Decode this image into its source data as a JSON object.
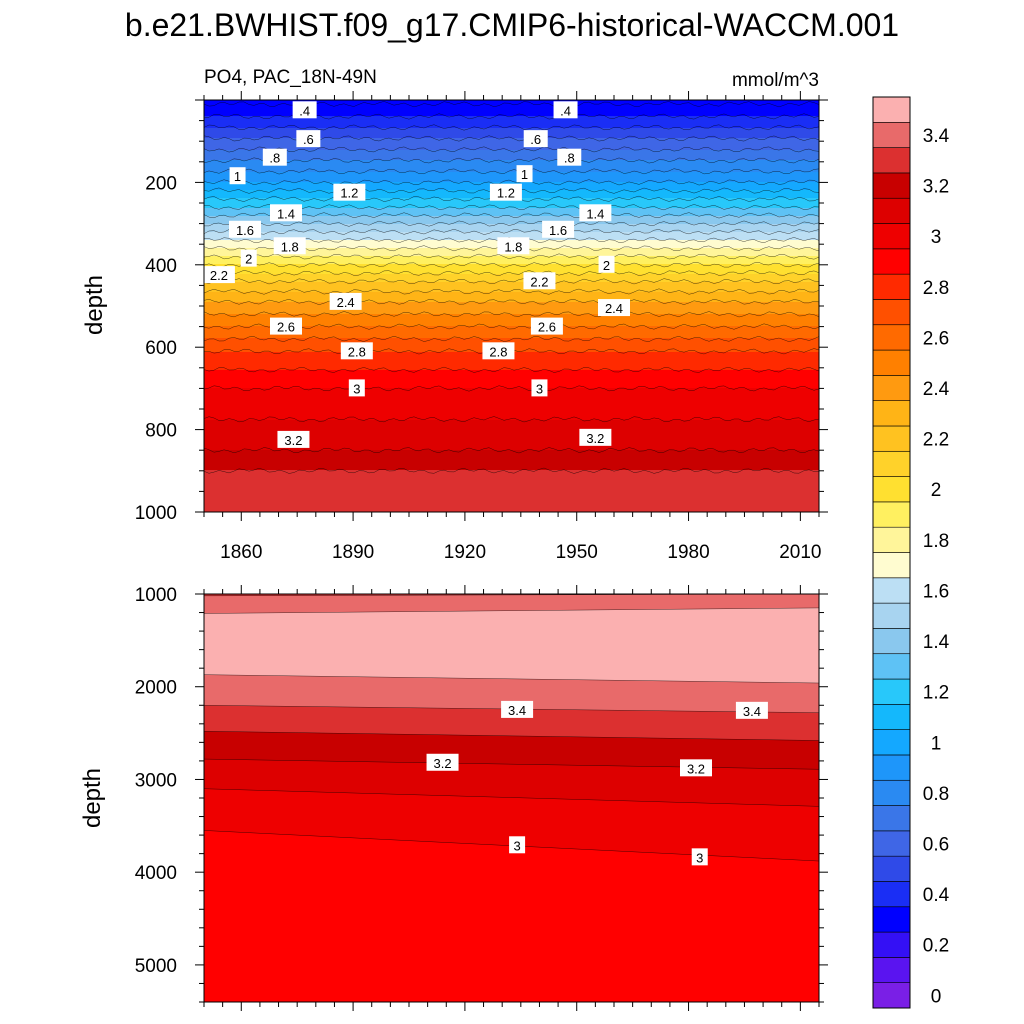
{
  "chart_data": {
    "type": "heatmap",
    "title": "b.e21.BWHIST.f09_g17.CMIP6-historical-WACCM.001",
    "variable_label": "PO4, PAC_18N-49N",
    "units": "mmol/m^3",
    "contour_levels": [
      0,
      0.1,
      0.2,
      0.3,
      0.4,
      0.5,
      0.6,
      0.7,
      0.8,
      0.9,
      1.0,
      1.1,
      1.2,
      1.3,
      1.4,
      1.5,
      1.6,
      1.7,
      1.8,
      1.9,
      2.0,
      2.1,
      2.2,
      2.3,
      2.4,
      2.5,
      2.6,
      2.7,
      2.8,
      2.9,
      3.0,
      3.1,
      3.2,
      3.3,
      3.4,
      3.5
    ],
    "colors": [
      "#7a1fe6",
      "#5a14f0",
      "#3410f5",
      "#0000ff",
      "#1a2ef5",
      "#2f4ae8",
      "#3f66e6",
      "#3a76e8",
      "#2a8af2",
      "#1e96fa",
      "#14a8ff",
      "#14b8fc",
      "#28c8fa",
      "#5ec2f5",
      "#8ac8ee",
      "#a8d4f0",
      "#bcdff4",
      "#fffcd0",
      "#fff59a",
      "#fff060",
      "#ffe030",
      "#ffd22a",
      "#ffc220",
      "#ffb416",
      "#ff9a10",
      "#ff8000",
      "#ff6a00",
      "#ff5000",
      "#ff2a00",
      "#ff0000",
      "#ee0000",
      "#dd0000",
      "#c80000",
      "#dc3030",
      "#e86a6a",
      "#fbb0b0"
    ],
    "colorbar_labels": [
      "0",
      "0.2",
      "0.4",
      "0.6",
      "0.8",
      "1",
      "1.2",
      "1.4",
      "1.6",
      "1.8",
      "2",
      "2.2",
      "2.4",
      "2.6",
      "2.8",
      "3",
      "3.2",
      "3.4"
    ],
    "panels": [
      {
        "name": "upper",
        "ylabel": "depth",
        "ylim": [
          1000,
          0
        ],
        "yticks": [
          "200",
          "400",
          "600",
          "800",
          "1000"
        ],
        "xlim": [
          1850,
          2015
        ],
        "xticks": [
          "1860",
          "1890",
          "1920",
          "1950",
          "1980",
          "2010"
        ],
        "depth_profile": [
          {
            "depth": 10,
            "value": 0.3
          },
          {
            "depth": 20,
            "value": 0.35
          },
          {
            "depth": 40,
            "value": 0.4
          },
          {
            "depth": 80,
            "value": 0.55
          },
          {
            "depth": 120,
            "value": 0.7
          },
          {
            "depth": 160,
            "value": 0.85
          },
          {
            "depth": 200,
            "value": 1.0
          },
          {
            "depth": 240,
            "value": 1.2
          },
          {
            "depth": 280,
            "value": 1.4
          },
          {
            "depth": 320,
            "value": 1.6
          },
          {
            "depth": 340,
            "value": 1.7
          },
          {
            "depth": 360,
            "value": 1.8
          },
          {
            "depth": 400,
            "value": 2.0
          },
          {
            "depth": 440,
            "value": 2.2
          },
          {
            "depth": 490,
            "value": 2.4
          },
          {
            "depth": 550,
            "value": 2.6
          },
          {
            "depth": 610,
            "value": 2.8
          },
          {
            "depth": 700,
            "value": 3.0
          },
          {
            "depth": 850,
            "value": 3.2
          },
          {
            "depth": 900,
            "value": 3.3
          },
          {
            "depth": 1000,
            "value": 3.33
          }
        ],
        "contour_labels": [
          {
            "text": ".4",
            "year": 1877,
            "depth": 25
          },
          {
            "text": ".4",
            "year": 1947,
            "depth": 25
          },
          {
            "text": ".6",
            "year": 1878,
            "depth": 95
          },
          {
            "text": ".6",
            "year": 1939,
            "depth": 95
          },
          {
            "text": ".8",
            "year": 1869,
            "depth": 140
          },
          {
            "text": ".8",
            "year": 1948,
            "depth": 140
          },
          {
            "text": "1",
            "year": 1859,
            "depth": 185
          },
          {
            "text": "1",
            "year": 1936,
            "depth": 180
          },
          {
            "text": "1.2",
            "year": 1889,
            "depth": 225
          },
          {
            "text": "1.2",
            "year": 1931,
            "depth": 225
          },
          {
            "text": "1.4",
            "year": 1872,
            "depth": 275
          },
          {
            "text": "1.4",
            "year": 1955,
            "depth": 275
          },
          {
            "text": "1.6",
            "year": 1861,
            "depth": 315
          },
          {
            "text": "1.6",
            "year": 1945,
            "depth": 315
          },
          {
            "text": "1.8",
            "year": 1873,
            "depth": 355
          },
          {
            "text": "1.8",
            "year": 1933,
            "depth": 355
          },
          {
            "text": "2",
            "year": 1862,
            "depth": 385
          },
          {
            "text": "2",
            "year": 1958,
            "depth": 400
          },
          {
            "text": "2.2",
            "year": 1854,
            "depth": 425
          },
          {
            "text": "2.2",
            "year": 1940,
            "depth": 440
          },
          {
            "text": "2.4",
            "year": 1888,
            "depth": 490
          },
          {
            "text": "2.4",
            "year": 1960,
            "depth": 505
          },
          {
            "text": "2.6",
            "year": 1872,
            "depth": 550
          },
          {
            "text": "2.6",
            "year": 1942,
            "depth": 550
          },
          {
            "text": "2.8",
            "year": 1891,
            "depth": 610
          },
          {
            "text": "2.8",
            "year": 1929,
            "depth": 610
          },
          {
            "text": "3",
            "year": 1891,
            "depth": 700
          },
          {
            "text": "3",
            "year": 1940,
            "depth": 700
          },
          {
            "text": "3.2",
            "year": 1874,
            "depth": 825
          },
          {
            "text": "3.2",
            "year": 1955,
            "depth": 820
          }
        ]
      },
      {
        "name": "lower",
        "ylabel": "depth",
        "ylim": [
          1000,
          5400
        ],
        "yticks": [
          "1000",
          "2000",
          "3000",
          "4000",
          "5000"
        ],
        "xlim": [
          1850,
          2015
        ],
        "boundaries": [
          {
            "value": 3.4,
            "depth_start": 1020,
            "depth_end": 1000
          },
          {
            "value": 3.5,
            "depth_start": 1210,
            "depth_end": 1150
          },
          {
            "value": 3.4,
            "depth_start": 1870,
            "depth_end": 1960
          },
          {
            "value": 3.3,
            "depth_start": 2200,
            "depth_end": 2280
          },
          {
            "value": 3.2,
            "depth_start": 2480,
            "depth_end": 2580
          },
          {
            "value": 3.1,
            "depth_start": 2780,
            "depth_end": 2890
          },
          {
            "value": 3.0,
            "depth_start": 3100,
            "depth_end": 3290
          },
          {
            "value": 2.9,
            "depth_start": 3550,
            "depth_end": 3880
          }
        ],
        "contour_labels": [
          {
            "text": "3.4",
            "year": 1934,
            "depth": 2250
          },
          {
            "text": "3.4",
            "year": 1997,
            "depth": 2260
          },
          {
            "text": "3.2",
            "year": 1914,
            "depth": 2820
          },
          {
            "text": "3.2",
            "year": 1982,
            "depth": 2880
          },
          {
            "text": "3",
            "year": 1934,
            "depth": 3710
          },
          {
            "text": "3",
            "year": 1983,
            "depth": 3840
          }
        ]
      }
    ]
  }
}
